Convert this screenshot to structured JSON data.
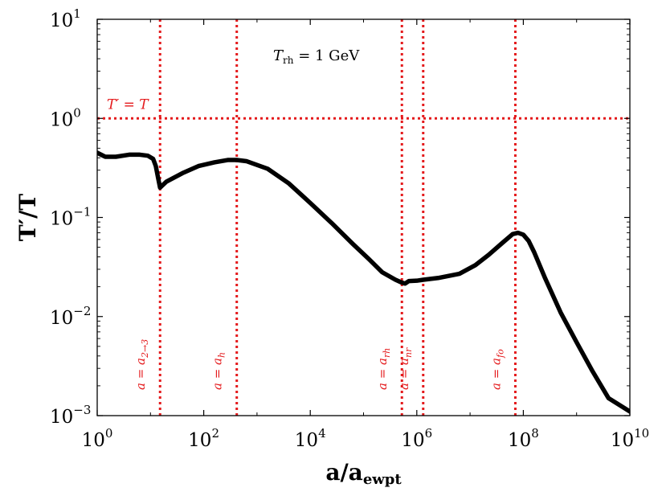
{
  "chart_data": {
    "type": "line",
    "xscale": "log",
    "yscale": "log",
    "xlim_exp": [
      0,
      10
    ],
    "ylim_exp": [
      -3,
      1
    ],
    "xlabel": {
      "base": "a/a",
      "sub": "ewpt"
    },
    "ylabel": "T′/T",
    "x_ticks": [
      {
        "exp": 0,
        "base": "10",
        "sup": "0"
      },
      {
        "exp": 2,
        "base": "10",
        "sup": "2"
      },
      {
        "exp": 4,
        "base": "10",
        "sup": "4"
      },
      {
        "exp": 6,
        "base": "10",
        "sup": "6"
      },
      {
        "exp": 8,
        "base": "10",
        "sup": "8"
      },
      {
        "exp": 10,
        "base": "10",
        "sup": "10"
      }
    ],
    "y_ticks": [
      {
        "exp": -3,
        "base": "10",
        "sup": "−3"
      },
      {
        "exp": -2,
        "base": "10",
        "sup": "−2"
      },
      {
        "exp": -1,
        "base": "10",
        "sup": "−1"
      },
      {
        "exp": 0,
        "base": "10",
        "sup": "0"
      },
      {
        "exp": 1,
        "base": "10",
        "sup": "1"
      }
    ],
    "annotation": {
      "text": "T",
      "sub": "rh",
      "rest": " = 1 GeV"
    },
    "hline": {
      "y": 1,
      "label": "T′ = T",
      "color": "#e41a1c"
    },
    "vlines": [
      {
        "x_log10": 1.18,
        "base": "a = a",
        "sub": "2→3",
        "color": "#e41a1c"
      },
      {
        "x_log10": 2.62,
        "base": "a = a",
        "sub": "h",
        "color": "#e41a1c"
      },
      {
        "x_log10": 5.72,
        "base": "a = a",
        "sub": "rh",
        "color": "#e41a1c"
      },
      {
        "x_log10": 6.12,
        "base": "a = a",
        "sub": "nr",
        "color": "#e41a1c"
      },
      {
        "x_log10": 7.85,
        "base": "a = a",
        "sub": "fo",
        "color": "#e41a1c"
      }
    ],
    "series": [
      {
        "name": "T′/T",
        "color": "#000000",
        "x_log10": [
          0,
          0.15,
          0.35,
          0.6,
          0.8,
          0.95,
          1.05,
          1.1,
          1.15,
          1.18,
          1.3,
          1.6,
          1.9,
          2.2,
          2.45,
          2.62,
          2.8,
          3.2,
          3.6,
          4.0,
          4.4,
          4.8,
          5.1,
          5.35,
          5.6,
          5.72,
          5.78,
          5.85,
          6.0,
          6.12,
          6.4,
          6.8,
          7.1,
          7.35,
          7.6,
          7.8,
          7.9,
          8.0,
          8.1,
          8.2,
          8.4,
          8.7,
          9.0,
          9.3,
          9.6,
          10.0
        ],
        "y": [
          0.45,
          0.41,
          0.41,
          0.43,
          0.43,
          0.42,
          0.39,
          0.33,
          0.24,
          0.2,
          0.23,
          0.28,
          0.33,
          0.36,
          0.38,
          0.38,
          0.37,
          0.31,
          0.22,
          0.14,
          0.088,
          0.054,
          0.038,
          0.028,
          0.0235,
          0.022,
          0.0215,
          0.0228,
          0.023,
          0.0235,
          0.0245,
          0.027,
          0.033,
          0.042,
          0.055,
          0.068,
          0.07,
          0.067,
          0.058,
          0.045,
          0.025,
          0.011,
          0.0055,
          0.0028,
          0.0015,
          0.0011
        ]
      }
    ]
  }
}
